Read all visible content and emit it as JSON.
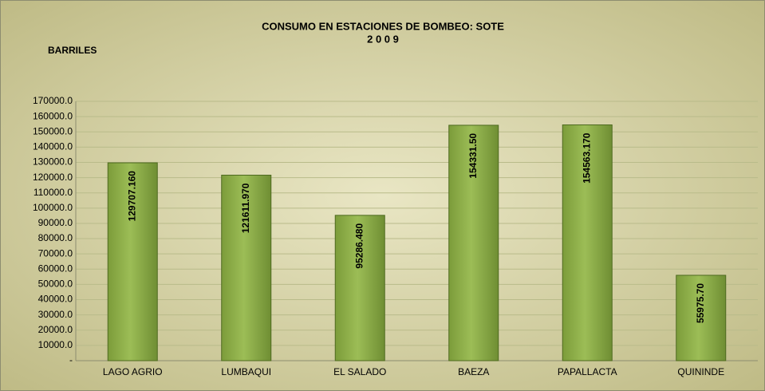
{
  "chart_data": {
    "type": "bar",
    "title": "CONSUMO EN ESTACIONES DE BOMBEO: SOTE",
    "subtitle": "2 0 0 9",
    "y_label": "BARRILES",
    "categories": [
      "LAGO AGRIO",
      "LUMBAQUI",
      "EL SALADO",
      "BAEZA",
      "PAPALLACTA",
      "QUININDE"
    ],
    "values": [
      129707.16,
      121611.97,
      95286.48,
      154331.5,
      154563.17,
      55975.7
    ],
    "value_labels": [
      "129707.160",
      "121611.970",
      "95286.480",
      "154331.50",
      "154563.170",
      "55975.70"
    ],
    "color": "#8aac45",
    "ylim": [
      0,
      170000
    ],
    "yticks": [
      {
        "value": 0,
        "label": "-"
      },
      {
        "value": 10000,
        "label": "10000.0"
      },
      {
        "value": 20000,
        "label": "20000.0"
      },
      {
        "value": 30000,
        "label": "30000.0"
      },
      {
        "value": 40000,
        "label": "40000.0"
      },
      {
        "value": 50000,
        "label": "50000.0"
      },
      {
        "value": 60000,
        "label": "60000.0"
      },
      {
        "value": 70000,
        "label": "70000.0"
      },
      {
        "value": 80000,
        "label": "80000.0"
      },
      {
        "value": 90000,
        "label": "90000.0"
      },
      {
        "value": 100000,
        "label": "100000.0"
      },
      {
        "value": 110000,
        "label": "110000.0"
      },
      {
        "value": 120000,
        "label": "120000.0"
      },
      {
        "value": 130000,
        "label": "130000.0"
      },
      {
        "value": 140000,
        "label": "140000.0"
      },
      {
        "value": 150000,
        "label": "150000.0"
      },
      {
        "value": 160000,
        "label": "160000.0"
      },
      {
        "value": 170000,
        "label": "170000.0"
      }
    ],
    "grid": true
  }
}
